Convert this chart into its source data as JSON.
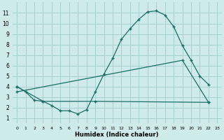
{
  "xlabel": "Humidex (Indice chaleur)",
  "bg_color": "#ceeaea",
  "grid_color": "#a8d0d0",
  "line_color": "#1a6e64",
  "xlim": [
    -0.5,
    23.5
  ],
  "ylim": [
    0.5,
    12.0
  ],
  "xticks": [
    0,
    1,
    2,
    3,
    4,
    5,
    6,
    7,
    8,
    9,
    10,
    11,
    12,
    13,
    14,
    15,
    16,
    17,
    18,
    19,
    20,
    21,
    22,
    23
  ],
  "yticks": [
    1,
    2,
    3,
    4,
    5,
    6,
    7,
    8,
    9,
    10,
    11
  ],
  "line1_x": [
    0,
    1,
    2,
    3,
    4,
    5,
    6,
    7,
    8,
    9,
    10,
    11,
    12,
    13,
    14,
    15,
    16,
    17,
    18,
    19,
    20,
    21,
    22
  ],
  "line1_y": [
    4.0,
    3.5,
    2.7,
    2.6,
    2.2,
    1.7,
    1.7,
    1.4,
    1.8,
    3.5,
    5.2,
    6.7,
    8.5,
    9.5,
    10.4,
    11.1,
    11.2,
    10.8,
    9.7,
    7.9,
    6.5,
    5.0,
    4.2
  ],
  "line2_x": [
    0,
    3,
    9,
    22
  ],
  "line2_y": [
    4.0,
    2.6,
    2.6,
    2.5
  ],
  "line3_x": [
    0,
    19,
    22
  ],
  "line3_y": [
    3.5,
    6.5,
    2.5
  ]
}
